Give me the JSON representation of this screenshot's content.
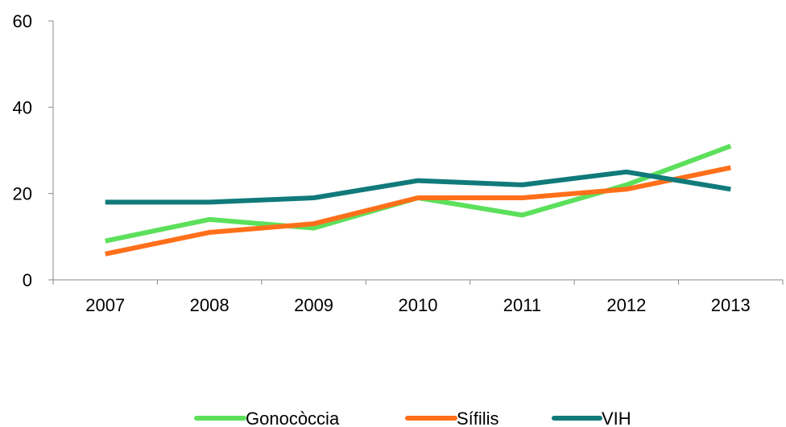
{
  "chart_data": {
    "type": "line",
    "title": "",
    "xlabel": "",
    "ylabel": "",
    "categories": [
      "2007",
      "2008",
      "2009",
      "2010",
      "2011",
      "2012",
      "2013"
    ],
    "ylim": [
      0,
      60
    ],
    "yticks": [
      0,
      20,
      40,
      60
    ],
    "grid": false,
    "legend_position": "bottom",
    "series": [
      {
        "name": "Gonocòccia",
        "color": "#5ce05c",
        "values": [
          9,
          14,
          12,
          19,
          15,
          22,
          31
        ]
      },
      {
        "name": "Sífilis",
        "color": "#ff6f1a",
        "values": [
          6,
          11,
          13,
          19,
          19,
          21,
          26
        ]
      },
      {
        "name": "VIH",
        "color": "#117a7a",
        "values": [
          18,
          18,
          19,
          23,
          22,
          25,
          21
        ]
      }
    ]
  }
}
